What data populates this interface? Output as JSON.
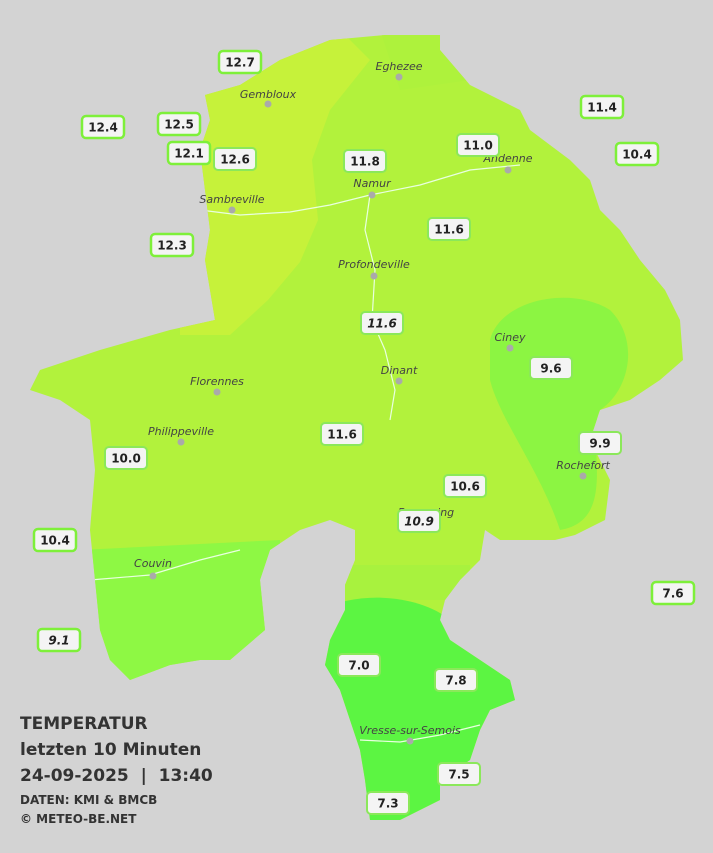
{
  "title": {
    "line1": "TEMPERATUR",
    "line2": "letzten 10 Minuten",
    "line3": "24-09-2025  |  13:40"
  },
  "credits": [
    "DATEN: KMI & BMCB",
    "© METEO-BE.NET"
  ],
  "cities": [
    "Eghezee",
    "Gembloux",
    "Andenne",
    "Sambreville",
    "Namur",
    "Profondeville",
    "Ciney",
    "Dinant",
    "Florennes",
    "Philippeville",
    "Rochefort",
    "Beauraing",
    "Couvin",
    "Vresse-sur-Semois"
  ],
  "stations": [
    "12.7",
    "12.4",
    "12.5",
    "12.1",
    "12.6",
    "12.3",
    "11.8",
    "11.0",
    "11.4",
    "10.4",
    "11.6",
    "11.6",
    "9.6",
    "11.6",
    "9.9",
    "10.0",
    "10.6",
    "10.9",
    "10.4",
    "7.6",
    "9.1",
    "7.0",
    "7.8",
    "7.5",
    "7.3"
  ]
}
